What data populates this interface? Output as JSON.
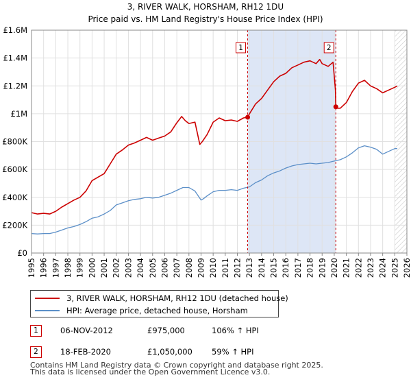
{
  "chart_data": {
    "type": "line",
    "title": "3, RIVER WALK, HORSHAM, RH12 1DU",
    "subtitle": "Price paid vs. HM Land Registry's House Price Index (HPI)",
    "xlabel": "",
    "ylabel": "",
    "xlim": [
      1995,
      2026
    ],
    "ylim": [
      0,
      1600000
    ],
    "y_ticks": [
      0,
      200000,
      400000,
      600000,
      800000,
      1000000,
      1200000,
      1400000,
      1600000
    ],
    "y_tick_labels": [
      "£0",
      "£200K",
      "£400K",
      "£600K",
      "£800K",
      "£1M",
      "£1.2M",
      "£1.4M",
      "£1.6M"
    ],
    "x_ticks": [
      "1995",
      "1996",
      "1997",
      "1998",
      "1999",
      "2000",
      "2001",
      "2002",
      "2003",
      "2004",
      "2005",
      "2006",
      "2007",
      "2008",
      "2009",
      "2010",
      "2011",
      "2012",
      "2013",
      "2014",
      "2015",
      "2016",
      "2017",
      "2018",
      "2019",
      "2020",
      "2021",
      "2022",
      "2023",
      "2024",
      "2025",
      "2026"
    ],
    "grid": true,
    "shaded_span": [
      2012.85,
      2020.13
    ],
    "hatched_from": 2025.0,
    "colors": {
      "property": "#cc0000",
      "hpi": "#5b8fc8",
      "shade": "#dde6f6",
      "grid": "#e0e0e0"
    },
    "series": [
      {
        "name": "3, RIVER WALK, HORSHAM, RH12 1DU (detached house)",
        "x": [
          1995.0,
          1995.5,
          1996.0,
          1996.5,
          1997.0,
          1997.5,
          1998.0,
          1998.5,
          1999.0,
          1999.5,
          2000.0,
          2000.5,
          2001.0,
          2001.5,
          2002.0,
          2002.5,
          2003.0,
          2003.5,
          2004.0,
          2004.5,
          2005.0,
          2005.5,
          2006.0,
          2006.5,
          2007.0,
          2007.4,
          2007.7,
          2008.0,
          2008.5,
          2008.9,
          2009.1,
          2009.5,
          2010.0,
          2010.5,
          2011.0,
          2011.5,
          2012.0,
          2012.5,
          2012.85,
          2013.0,
          2013.5,
          2014.0,
          2014.5,
          2015.0,
          2015.5,
          2016.0,
          2016.5,
          2017.0,
          2017.5,
          2018.0,
          2018.5,
          2018.8,
          2019.0,
          2019.5,
          2019.9,
          2020.1,
          2020.13,
          2020.2,
          2020.5,
          2021.0,
          2021.5,
          2022.0,
          2022.5,
          2023.0,
          2023.5,
          2024.0,
          2024.5,
          2025.0,
          2025.2
        ],
        "values": [
          290000,
          280000,
          285000,
          280000,
          300000,
          330000,
          355000,
          380000,
          400000,
          445000,
          520000,
          545000,
          570000,
          640000,
          710000,
          740000,
          775000,
          790000,
          810000,
          830000,
          810000,
          825000,
          840000,
          870000,
          935000,
          980000,
          950000,
          930000,
          940000,
          780000,
          800000,
          850000,
          940000,
          970000,
          950000,
          955000,
          945000,
          970000,
          975000,
          1000000,
          1070000,
          1110000,
          1170000,
          1230000,
          1270000,
          1290000,
          1330000,
          1350000,
          1370000,
          1380000,
          1360000,
          1390000,
          1360000,
          1340000,
          1370000,
          1170000,
          1050000,
          1040000,
          1040000,
          1080000,
          1160000,
          1220000,
          1240000,
          1200000,
          1180000,
          1150000,
          1170000,
          1190000,
          1200000
        ]
      },
      {
        "name": "HPI: Average price, detached house, Horsham",
        "x": [
          1995.0,
          1995.5,
          1996.0,
          1996.5,
          1997.0,
          1997.5,
          1998.0,
          1998.5,
          1999.0,
          1999.5,
          2000.0,
          2000.5,
          2001.0,
          2001.5,
          2002.0,
          2002.5,
          2003.0,
          2003.5,
          2004.0,
          2004.5,
          2005.0,
          2005.5,
          2006.0,
          2006.5,
          2007.0,
          2007.5,
          2008.0,
          2008.5,
          2009.0,
          2009.2,
          2009.5,
          2010.0,
          2010.5,
          2011.0,
          2011.5,
          2012.0,
          2012.5,
          2013.0,
          2013.5,
          2014.0,
          2014.5,
          2015.0,
          2015.5,
          2016.0,
          2016.5,
          2017.0,
          2017.5,
          2018.0,
          2018.5,
          2019.0,
          2019.5,
          2020.0,
          2020.5,
          2021.0,
          2021.5,
          2022.0,
          2022.5,
          2023.0,
          2023.5,
          2024.0,
          2024.5,
          2025.0,
          2025.2
        ],
        "values": [
          140000,
          137000,
          140000,
          140000,
          150000,
          165000,
          180000,
          190000,
          205000,
          225000,
          250000,
          260000,
          280000,
          305000,
          345000,
          360000,
          375000,
          385000,
          390000,
          400000,
          395000,
          400000,
          415000,
          430000,
          450000,
          470000,
          470000,
          445000,
          380000,
          390000,
          410000,
          440000,
          450000,
          450000,
          455000,
          450000,
          465000,
          475000,
          505000,
          525000,
          555000,
          575000,
          590000,
          610000,
          625000,
          635000,
          640000,
          645000,
          640000,
          645000,
          650000,
          660000,
          670000,
          690000,
          720000,
          755000,
          770000,
          760000,
          745000,
          710000,
          730000,
          750000,
          750000
        ]
      }
    ],
    "sales": [
      {
        "id": "1",
        "x": 2012.85,
        "value": 975000,
        "date": "06-NOV-2012",
        "price": "£975,000",
        "hpi_change": "106% ↑ HPI"
      },
      {
        "id": "2",
        "x": 2020.13,
        "value": 1050000,
        "date": "18-FEB-2020",
        "price": "£1,050,000",
        "hpi_change": "59% ↑ HPI"
      }
    ]
  },
  "legend": {
    "property_label": "3, RIVER WALK, HORSHAM, RH12 1DU (detached house)",
    "hpi_label": "HPI: Average price, detached house, Horsham"
  },
  "footer": {
    "line1": "Contains HM Land Registry data © Crown copyright and database right 2025.",
    "line2": "This data is licensed under the Open Government Licence v3.0."
  }
}
